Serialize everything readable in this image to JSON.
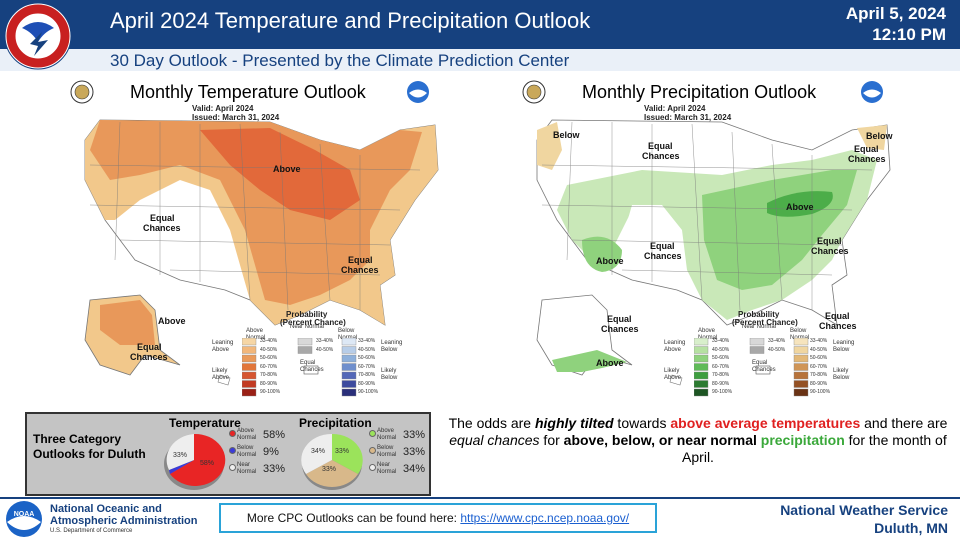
{
  "header": {
    "title": "April 2024 Temperature and Precipitation Outlook",
    "subtitle": "30 Day Outlook - Presented by the Climate Prediction Center",
    "date": "April 5, 2024",
    "time": "12:10 PM",
    "logo_text": "NATIONAL WEATHER SERVICE"
  },
  "temp_map": {
    "title": "Monthly Temperature Outlook",
    "valid": "Valid:   April 2024",
    "issued": "Issued:   March 31, 2024",
    "labels": {
      "above_main": "Above",
      "ec_west_1": "Equal",
      "ec_west_2": "Chances",
      "ec_se_1": "Equal",
      "ec_se_2": "Chances",
      "above_ak": "Above",
      "ec_ak_1": "Equal",
      "ec_ak_2": "Chances"
    },
    "legend": {
      "title1": "Probability",
      "title2": "(Percent Chance)",
      "col_above": "Above Normal",
      "col_near": "Near Normal",
      "col_below": "Below Normal",
      "leaning_above": "Leaning Above",
      "likely_above": "Likely Above",
      "leaning_below": "Leaning Below",
      "likely_below": "Likely Below",
      "equal_chances": "Equal Chances",
      "rows": [
        "33-40%",
        "40-50%",
        "50-60%",
        "60-70%",
        "70-80%",
        "80-90%",
        "90-100%"
      ],
      "near_rows": [
        "33-40%",
        "40-50%"
      ]
    }
  },
  "precip_map": {
    "title": "Monthly Precipitation Outlook",
    "valid": "Valid:   April 2024",
    "issued": "Issued:   March 31, 2024",
    "labels": {
      "below_nw": "Below",
      "ec_nw_1": "Equal",
      "ec_nw_2": "Chances",
      "below_ne": "Below",
      "ec_ne_1": "Equal",
      "ec_ne_2": "Chances",
      "above_east": "Above",
      "ec_center_1": "Equal",
      "ec_center_2": "Chances",
      "above_sw": "Above",
      "ec_se_1": "Equal",
      "ec_se_2": "Chances",
      "ec_sfl_1": "Equal",
      "ec_sfl_2": "Chances",
      "ec_ak_1": "Equal",
      "ec_ak_2": "Chances",
      "above_ak": "Above"
    },
    "legend": {
      "title1": "Probability",
      "title2": "(Percent Chance)",
      "col_above": "Above Normal",
      "col_near": "Near Normal",
      "col_below": "Below Normal",
      "leaning_above": "Leaning Above",
      "likely_above": "Likely Above",
      "leaning_below": "Leaning Below",
      "likely_below": "Likely Below",
      "equal_chances": "Equal Chances",
      "rows": [
        "33-40%",
        "40-50%",
        "50-60%",
        "60-70%",
        "70-80%",
        "80-90%",
        "90-100%"
      ],
      "near_rows": [
        "33-40%",
        "40-50%"
      ]
    }
  },
  "duluth": {
    "title_line1": "Three Category",
    "title_line2": "Outlooks for Duluth",
    "temperature": {
      "heading": "Temperature",
      "pie_labels": {
        "near": "33%",
        "above": "58%"
      },
      "items": [
        {
          "label": "Above Normal",
          "value": "58%",
          "color": "#e82525"
        },
        {
          "label": "Below Normal",
          "value": "9%",
          "color": "#3b3bd8"
        },
        {
          "label": "Near Normal",
          "value": "33%",
          "color": "#eeeeee"
        }
      ]
    },
    "precipitation": {
      "heading": "Precipitation",
      "pie_labels": {
        "near": "34%",
        "above": "33%",
        "below": "33%"
      },
      "items": [
        {
          "label": "Above Normal",
          "value": "33%",
          "color": "#9be35b"
        },
        {
          "label": "Below Normal",
          "value": "33%",
          "color": "#d8b88a"
        },
        {
          "label": "Near Normal",
          "value": "34%",
          "color": "#eeeeee"
        }
      ]
    }
  },
  "message": {
    "p1": "The odds are ",
    "p2": "highly tilted",
    "p3": " towards ",
    "p4": "above average temperatures",
    "p5": " and there are ",
    "p6": "equal chances",
    "p7": " for ",
    "p8": "above, below, or near normal",
    "p9": " ",
    "p10": "precipitation",
    "p11": " for the month of April."
  },
  "footer": {
    "noaa_line1": "National Oceanic and",
    "noaa_line2": "Atmospheric Administration",
    "noaa_line3": "U.S. Department of Commerce",
    "noaa_logo": "NOAA",
    "link_prefix": "More CPC Outlooks can be found here: ",
    "link_url": "https://www.cpc.ncep.noaa.gov/",
    "nws_line1": "National Weather Service",
    "nws_line2": "Duluth, MN"
  },
  "colors": {
    "header_blue": "#16417f",
    "temp_light": "#f2c88b",
    "temp_mid": "#e8985a",
    "temp_dark": "#e2693a",
    "precip_light": "#c9e8b8",
    "precip_mid": "#8fd27d",
    "precip_dark": "#4cad49",
    "precip_below": "#f0d6a0"
  }
}
